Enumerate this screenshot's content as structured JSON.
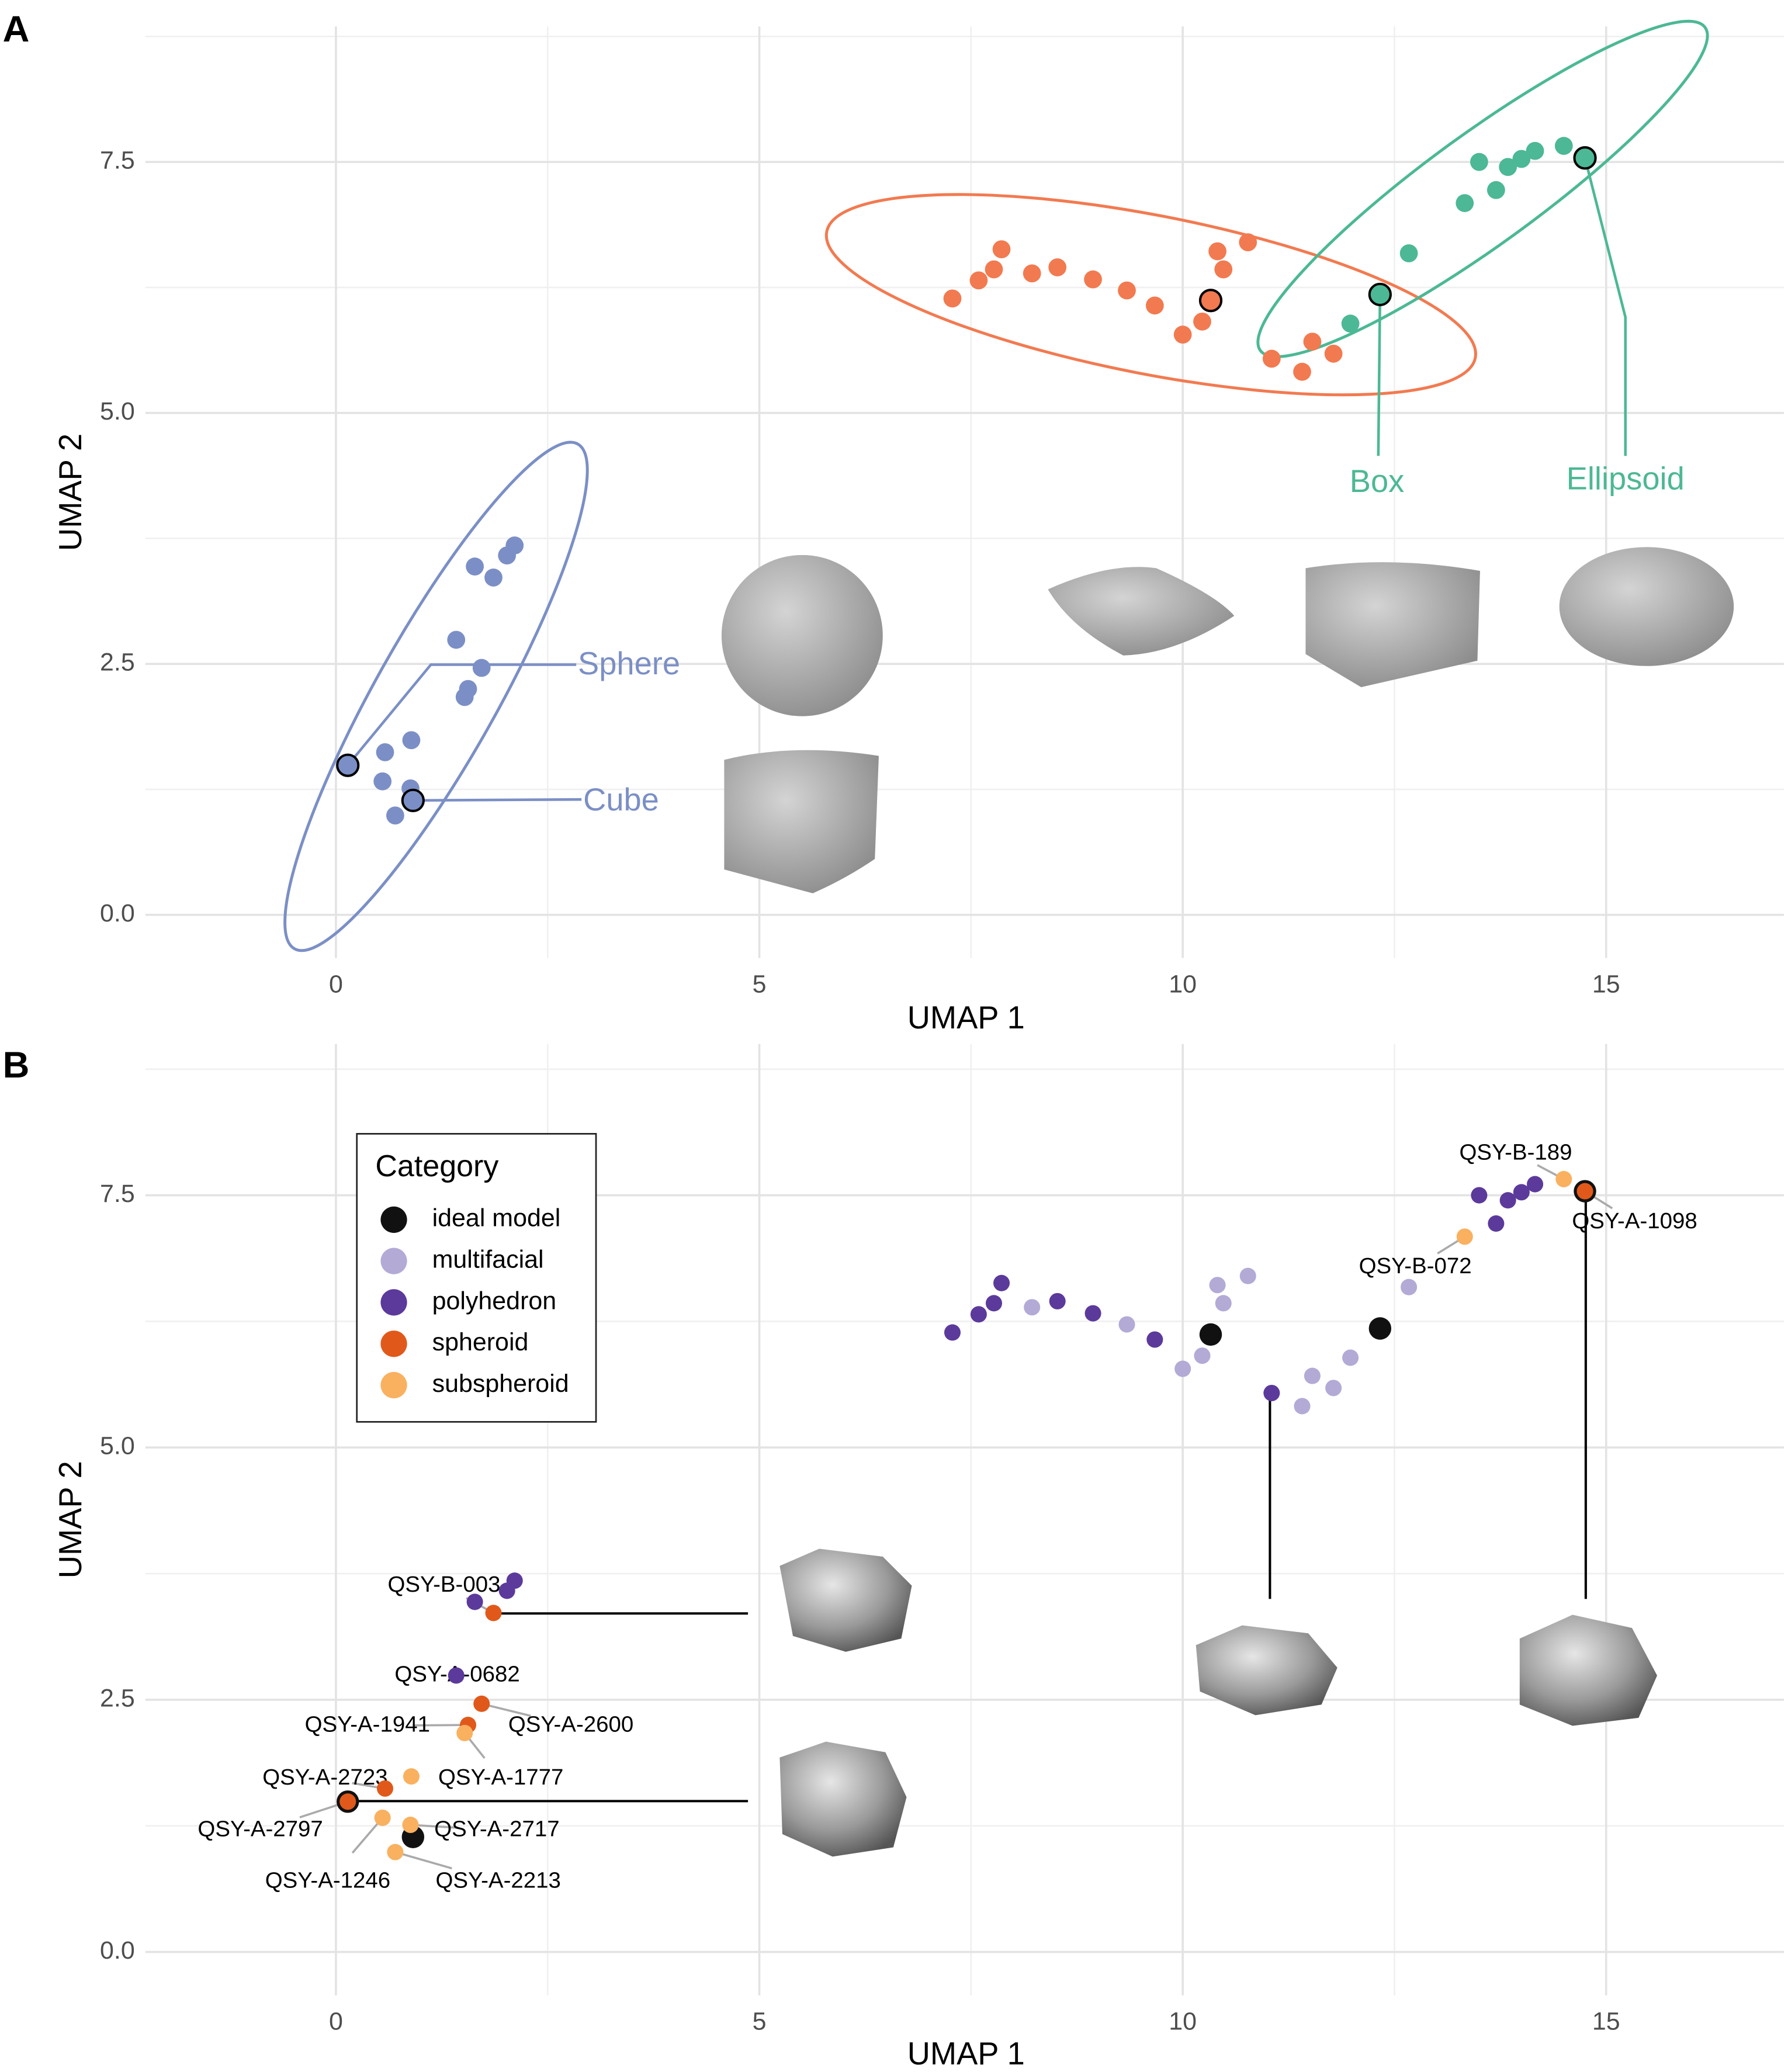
{
  "chart_data": [
    {
      "type": "scatter",
      "panel_label": "A",
      "xlabel": "UMAP 1",
      "ylabel": "UMAP 2",
      "xlim": [
        -2.25,
        17.1
      ],
      "ylim": [
        -0.43,
        8.85
      ],
      "xticks": [
        0,
        5,
        10,
        15
      ],
      "yticks": [
        {
          "value": 0,
          "label": "0.0"
        },
        2.5,
        {
          "value": 5,
          "label": "5.0"
        },
        7.5
      ],
      "grid": true,
      "series": [
        {
          "color": "#7b8fc6",
          "x": [
            0.58,
            0.55,
            0.89,
            0.88,
            0.7,
            1.42,
            1.72,
            1.56,
            1.52,
            1.64,
            1.86,
            2.02,
            2.11
          ],
          "values": [
            1.62,
            1.33,
            1.74,
            1.26,
            0.99,
            2.74,
            2.46,
            2.25,
            2.17,
            3.47,
            3.36,
            3.58,
            3.68
          ]
        },
        {
          "color": "#f27a50",
          "x": [
            7.28,
            7.59,
            7.77,
            7.86,
            8.22,
            8.52,
            8.94,
            9.34,
            9.67,
            10.0,
            10.23,
            10.41,
            10.48,
            10.77,
            11.05,
            11.53,
            11.41,
            11.78
          ],
          "values": [
            6.14,
            6.32,
            6.43,
            6.63,
            6.39,
            6.45,
            6.33,
            6.22,
            6.07,
            5.78,
            5.91,
            6.61,
            6.43,
            6.7,
            5.54,
            5.71,
            5.41,
            5.59
          ]
        },
        {
          "color": "#4cb895",
          "x": [
            11.98,
            12.67,
            13.33,
            13.5,
            13.7,
            13.84,
            14.0,
            14.16,
            14.5
          ],
          "values": [
            5.89,
            6.59,
            7.09,
            7.5,
            7.22,
            7.45,
            7.53,
            7.61,
            7.66
          ]
        },
        {
          "color": "#7b8fc6",
          "edgecolor": "#000000",
          "x": [
            0.14,
            0.91
          ],
          "values": [
            1.49,
            1.14
          ]
        },
        {
          "color": "#f27a50",
          "edgecolor": "#000000",
          "x": [
            10.33
          ],
          "values": [
            6.12
          ]
        },
        {
          "color": "#4cb895",
          "edgecolor": "#000000",
          "x": [
            12.33,
            14.75
          ],
          "values": [
            6.18,
            7.54
          ]
        }
      ],
      "annotations": [
        {
          "text": "Sphere",
          "x": 0.14,
          "y": 1.49,
          "color": "#7b8fc6"
        },
        {
          "text": "Cube",
          "x": 0.91,
          "y": 1.14,
          "color": "#7b8fc6"
        },
        {
          "text": "Box",
          "x": 12.33,
          "y": 6.18,
          "color": "#4cb895"
        },
        {
          "text": "Ellipsoid",
          "x": 14.75,
          "y": 7.54,
          "color": "#4cb895"
        }
      ]
    },
    {
      "type": "scatter",
      "panel_label": "B",
      "xlabel": "UMAP 1",
      "ylabel": "UMAP 2",
      "xlim": [
        -2.25,
        17.1
      ],
      "ylim": [
        -0.43,
        9.0
      ],
      "xticks": [
        0,
        5,
        10,
        15
      ],
      "yticks": [
        {
          "value": 0,
          "label": "0.0"
        },
        2.5,
        {
          "value": 5,
          "label": "5.0"
        },
        7.5
      ],
      "grid": true,
      "legend": "upper left",
      "legend_title": "Category",
      "series": [
        {
          "name": "ideal model",
          "color": "#111111",
          "x": [
            0.14,
            0.91,
            10.33,
            12.33,
            14.75
          ],
          "values": [
            1.49,
            1.14,
            6.12,
            6.18,
            7.54
          ]
        },
        {
          "name": "multifacial",
          "color": "#b3aad6",
          "x": [
            8.22,
            9.34,
            10.0,
            10.23,
            10.41,
            10.48,
            10.77,
            11.53,
            11.41,
            11.78,
            11.98,
            12.67
          ],
          "values": [
            6.39,
            6.22,
            5.78,
            5.91,
            6.61,
            6.43,
            6.7,
            5.71,
            5.41,
            5.59,
            5.89,
            6.59
          ]
        },
        {
          "name": "polyhedron",
          "color": "#5b3a9b",
          "x": [
            1.42,
            1.64,
            2.02,
            2.11,
            7.28,
            7.59,
            7.77,
            7.86,
            8.52,
            8.94,
            9.67,
            11.05,
            13.5,
            13.7,
            13.84,
            14.0,
            14.16
          ],
          "values": [
            2.74,
            3.47,
            3.58,
            3.68,
            6.14,
            6.32,
            6.43,
            6.63,
            6.45,
            6.33,
            6.07,
            5.54,
            7.5,
            7.22,
            7.45,
            7.53,
            7.61
          ]
        },
        {
          "name": "spheroid",
          "color": "#e0591b",
          "x": [
            0.14,
            0.58,
            1.72,
            1.56,
            1.86,
            14.75
          ],
          "values": [
            1.49,
            1.62,
            2.46,
            2.25,
            3.36,
            7.54
          ]
        },
        {
          "name": "subspheroid",
          "color": "#f9b15f",
          "x": [
            0.89,
            0.55,
            0.88,
            0.7,
            1.52,
            13.33,
            14.5
          ],
          "values": [
            1.74,
            1.33,
            1.26,
            0.99,
            2.17,
            7.09,
            7.66
          ]
        }
      ],
      "annotations": [
        {
          "text": "QSY-B-189",
          "x": 14.5,
          "y": 7.66
        },
        {
          "text": "QSY-A-1098",
          "x": 14.75,
          "y": 7.54
        },
        {
          "text": "QSY-B-072",
          "x": 13.33,
          "y": 7.09
        },
        {
          "text": "QSY-B-003",
          "x": 1.86,
          "y": 3.36
        },
        {
          "text": "QSY-A-0682",
          "x": 1.42,
          "y": 2.74
        },
        {
          "text": "QSY-A-2600",
          "x": 1.72,
          "y": 2.46
        },
        {
          "text": "QSY-A-1941",
          "x": 1.56,
          "y": 2.25
        },
        {
          "text": "QSY-A-1777",
          "x": 1.52,
          "y": 2.17
        },
        {
          "text": "QSY-A-2723",
          "x": 0.58,
          "y": 1.62
        },
        {
          "text": "QSY-A-2797",
          "x": 0.14,
          "y": 1.49
        },
        {
          "text": "QSY-A-2717",
          "x": 0.88,
          "y": 1.26
        },
        {
          "text": "QSY-A-1246",
          "x": 0.55,
          "y": 1.33
        },
        {
          "text": "QSY-A-2213",
          "x": 0.7,
          "y": 0.99
        }
      ]
    }
  ]
}
